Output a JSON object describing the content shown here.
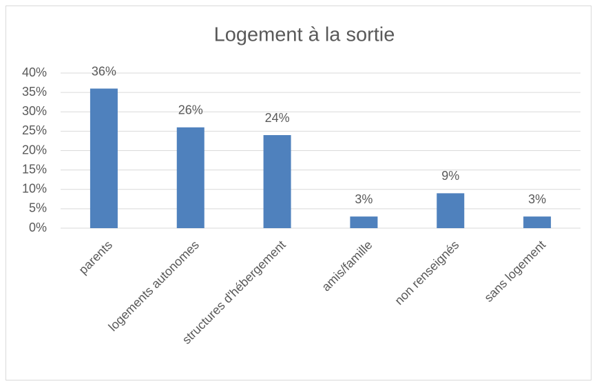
{
  "chart_data": {
    "type": "bar",
    "title": "Logement à la sortie",
    "categories": [
      "parents",
      "logements autonomes",
      "structures d'hébergement",
      "amis/famille",
      "non renseignés",
      "sans logement"
    ],
    "values": [
      36,
      26,
      24,
      3,
      9,
      3
    ],
    "value_labels": [
      "36%",
      "26%",
      "24%",
      "3%",
      "9%",
      "3%"
    ],
    "color": "#4f81bd",
    "ylim": [
      0,
      40
    ],
    "yticks": [
      {
        "value": 0,
        "label": "0%"
      },
      {
        "value": 5,
        "label": "5%"
      },
      {
        "value": 10,
        "label": "10%"
      },
      {
        "value": 15,
        "label": "15%"
      },
      {
        "value": 20,
        "label": "20%"
      },
      {
        "value": 25,
        "label": "25%"
      },
      {
        "value": 30,
        "label": "30%"
      },
      {
        "value": 35,
        "label": "35%"
      },
      {
        "value": 40,
        "label": "40%"
      }
    ],
    "grid": true
  }
}
